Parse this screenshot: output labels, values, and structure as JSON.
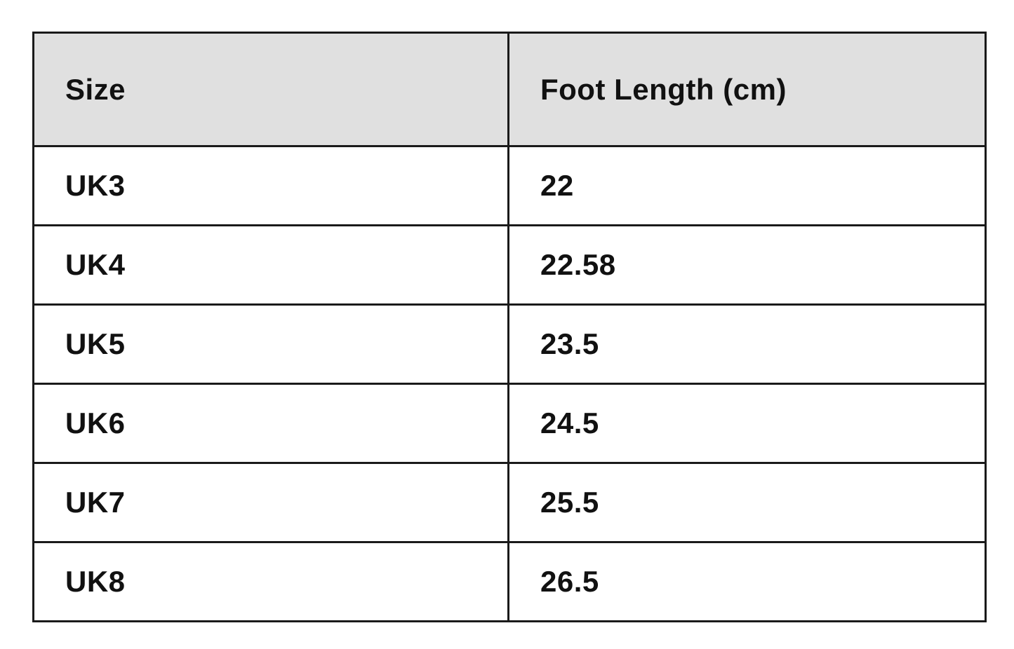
{
  "table": {
    "header": [
      "Size",
      "Foot Length (cm)"
    ],
    "rows": [
      [
        "UK3",
        "22"
      ],
      [
        "UK4",
        "22.58"
      ],
      [
        "UK5",
        "23.5"
      ],
      [
        "UK6",
        "24.5"
      ],
      [
        "UK7",
        "25.5"
      ],
      [
        "UK8",
        "26.5"
      ]
    ]
  }
}
